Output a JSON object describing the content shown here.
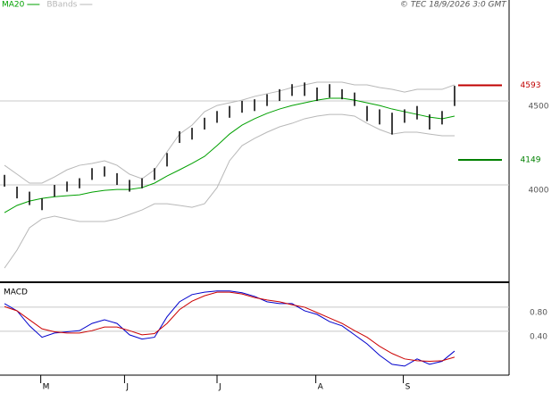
{
  "header": {
    "copyright": "© TEC 18/9/2026 3:0 GMT"
  },
  "chart_data": [
    {
      "type": "range",
      "x": [
        0,
        1,
        2,
        3,
        4,
        5,
        6,
        7,
        8,
        9,
        10,
        11,
        12,
        13,
        14,
        15,
        16,
        17,
        18,
        19,
        20,
        21,
        22,
        23,
        24,
        25,
        26,
        27,
        28,
        29,
        30,
        31,
        32,
        33,
        34,
        35,
        36
      ],
      "high": [
        4060,
        3990,
        3960,
        3920,
        4000,
        4020,
        4040,
        4100,
        4110,
        4070,
        4030,
        4040,
        4100,
        4190,
        4320,
        4340,
        4400,
        4440,
        4470,
        4500,
        4510,
        4540,
        4570,
        4600,
        4610,
        4580,
        4600,
        4570,
        4550,
        4470,
        4450,
        4430,
        4450,
        4470,
        4420,
        4440,
        4590
      ],
      "low": [
        3990,
        3920,
        3880,
        3850,
        3930,
        3960,
        3980,
        4030,
        4050,
        4000,
        3960,
        3980,
        4030,
        4110,
        4250,
        4270,
        4330,
        4370,
        4400,
        4430,
        4440,
        4470,
        4500,
        4530,
        4530,
        4500,
        4520,
        4510,
        4470,
        4380,
        4360,
        4300,
        4370,
        4390,
        4330,
        4360,
        4470
      ],
      "bar_color": "#000000",
      "series": [
        {
          "name": "MA20",
          "color": "#00a000",
          "values": [
            3835,
            3878,
            3904,
            3920,
            3930,
            3936,
            3941,
            3957,
            3968,
            3973,
            3973,
            3984,
            4011,
            4053,
            4090,
            4128,
            4170,
            4234,
            4303,
            4356,
            4394,
            4426,
            4452,
            4473,
            4489,
            4505,
            4516,
            4516,
            4505,
            4489,
            4473,
            4452,
            4436,
            4420,
            4404,
            4394,
            4410
          ]
        },
        {
          "name": "BBands",
          "color": "#b8b8b8",
          "upper": [
            4117,
            4064,
            4011,
            4011,
            4048,
            4090,
            4117,
            4128,
            4144,
            4117,
            4064,
            4037,
            4090,
            4197,
            4303,
            4356,
            4436,
            4473,
            4489,
            4505,
            4527,
            4543,
            4559,
            4580,
            4596,
            4612,
            4612,
            4612,
            4596,
            4596,
            4580,
            4569,
            4553,
            4569,
            4569,
            4569,
            4596
          ],
          "lower": [
            3505,
            3612,
            3745,
            3798,
            3814,
            3798,
            3782,
            3782,
            3782,
            3798,
            3824,
            3851,
            3888,
            3888,
            3878,
            3867,
            3888,
            3984,
            4144,
            4234,
            4277,
            4314,
            4346,
            4367,
            4394,
            4410,
            4420,
            4420,
            4410,
            4367,
            4330,
            4303,
            4314,
            4314,
            4303,
            4293,
            4293
          ]
        }
      ],
      "levels": [
        {
          "value": 4593,
          "color": "#c00000"
        },
        {
          "value": 4149,
          "color": "#008000"
        }
      ],
      "xlim": [
        -0.36,
        40.36
      ],
      "ylim": [
        3426,
        5101
      ],
      "yticks": [
        4500,
        4000
      ],
      "grid": true
    },
    {
      "type": "line",
      "title": "MACD",
      "x": [
        0,
        1,
        2,
        3,
        4,
        5,
        6,
        7,
        8,
        9,
        10,
        11,
        12,
        13,
        14,
        15,
        16,
        17,
        18,
        19,
        20,
        21,
        22,
        23,
        24,
        25,
        26,
        27,
        28,
        29,
        30,
        31,
        32,
        33,
        34,
        35,
        36
      ],
      "series": [
        {
          "color": "#0000cc",
          "values": [
            0.86,
            0.74,
            0.49,
            0.3,
            0.37,
            0.39,
            0.41,
            0.53,
            0.59,
            0.53,
            0.34,
            0.27,
            0.3,
            0.64,
            0.89,
            1.01,
            1.05,
            1.07,
            1.07,
            1.04,
            0.98,
            0.89,
            0.86,
            0.86,
            0.74,
            0.68,
            0.56,
            0.49,
            0.34,
            0.19,
            0.0,
            -0.15,
            -0.18,
            -0.06,
            -0.15,
            -0.1,
            0.07
          ]
        },
        {
          "color": "#cc0000",
          "values": [
            0.81,
            0.74,
            0.59,
            0.44,
            0.39,
            0.37,
            0.37,
            0.41,
            0.47,
            0.47,
            0.41,
            0.34,
            0.36,
            0.53,
            0.76,
            0.9,
            0.99,
            1.05,
            1.05,
            1.02,
            0.96,
            0.92,
            0.89,
            0.84,
            0.8,
            0.71,
            0.62,
            0.53,
            0.41,
            0.3,
            0.15,
            0.03,
            -0.06,
            -0.09,
            -0.1,
            -0.09,
            -0.03
          ]
        }
      ],
      "xlim": [
        -0.36,
        40.36
      ],
      "ylim": [
        -0.33,
        1.2
      ],
      "yticks": [
        {
          "value": 0.8,
          "label": "0.80"
        },
        {
          "value": 0.4,
          "label": "0.40"
        }
      ],
      "xticks": [
        {
          "value": 2.9,
          "label": "M"
        },
        {
          "value": 9.6,
          "label": "J"
        },
        {
          "value": 17,
          "label": "J"
        },
        {
          "value": 24.9,
          "label": "A"
        },
        {
          "value": 31.9,
          "label": "S"
        }
      ],
      "grid": true
    }
  ]
}
